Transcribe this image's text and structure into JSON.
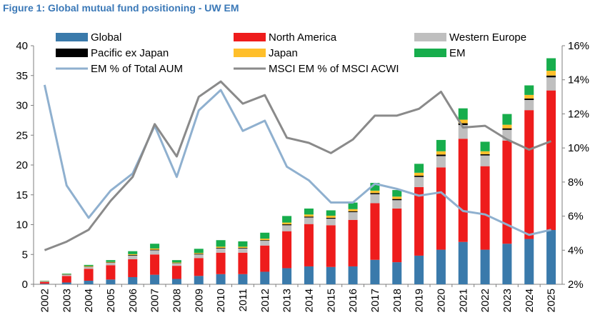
{
  "chart_data": {
    "type": "bar",
    "title": "Figure 1: Global mutual fund positioning - UW EM",
    "categories": [
      "2002",
      "2003",
      "2004",
      "2005",
      "2006",
      "2007",
      "2008",
      "2009",
      "2010",
      "2011",
      "2012",
      "2013",
      "2014",
      "2015",
      "2016",
      "2017",
      "2018",
      "2019",
      "2020",
      "2021",
      "2022",
      "2023",
      "2024",
      "2025"
    ],
    "stacked": true,
    "series": [
      {
        "name": "Global",
        "color": "#3a7aab",
        "axis": "left",
        "values": [
          0.1,
          0.3,
          0.6,
          0.8,
          1.2,
          1.6,
          0.9,
          1.4,
          1.7,
          1.7,
          2.1,
          2.7,
          3.0,
          2.9,
          3.0,
          4.1,
          3.7,
          4.8,
          5.8,
          7.1,
          5.8,
          6.8,
          7.6,
          9.1
        ]
      },
      {
        "name": "North America",
        "color": "#ee1c1c",
        "axis": "left",
        "values": [
          0.3,
          1.1,
          2.0,
          2.4,
          3.0,
          3.4,
          2.2,
          3.0,
          3.6,
          3.6,
          4.4,
          6.2,
          7.1,
          7.0,
          7.8,
          9.5,
          9.0,
          11.5,
          13.8,
          17.3,
          14.0,
          17.3,
          21.6,
          23.4
        ]
      },
      {
        "name": "Western Europe",
        "color": "#bfbfbf",
        "axis": "left",
        "values": [
          0.1,
          0.2,
          0.3,
          0.4,
          0.6,
          0.7,
          0.4,
          0.6,
          0.7,
          0.7,
          0.8,
          1.0,
          1.1,
          1.1,
          1.3,
          1.5,
          1.4,
          1.7,
          1.9,
          2.3,
          1.8,
          1.8,
          1.7,
          2.2
        ]
      },
      {
        "name": "Pacific ex Japan",
        "color": "#000000",
        "axis": "left",
        "values": [
          0.02,
          0.05,
          0.05,
          0.05,
          0.1,
          0.1,
          0.05,
          0.1,
          0.1,
          0.1,
          0.1,
          0.15,
          0.15,
          0.15,
          0.15,
          0.2,
          0.2,
          0.2,
          0.25,
          0.3,
          0.2,
          0.25,
          0.25,
          0.3
        ]
      },
      {
        "name": "Japan",
        "color": "#ffbf2a",
        "axis": "left",
        "values": [
          0.03,
          0.05,
          0.1,
          0.1,
          0.15,
          0.2,
          0.1,
          0.15,
          0.2,
          0.2,
          0.25,
          0.3,
          0.35,
          0.35,
          0.35,
          0.4,
          0.4,
          0.5,
          0.55,
          0.6,
          0.5,
          0.6,
          0.6,
          0.8
        ]
      },
      {
        "name": "EM",
        "color": "#17ad4c",
        "axis": "left",
        "values": [
          0.05,
          0.1,
          0.2,
          0.3,
          0.5,
          0.8,
          0.4,
          0.7,
          1.1,
          0.9,
          1.0,
          1.1,
          1.0,
          0.9,
          1.1,
          1.3,
          1.1,
          1.5,
          1.9,
          1.9,
          1.6,
          1.8,
          1.6,
          2.1
        ]
      },
      {
        "name": "EM % of Total AUM",
        "color": "#8fb0cf",
        "axis": "right",
        "type": "line",
        "values": [
          13.7,
          7.8,
          5.9,
          7.5,
          8.5,
          11.3,
          8.3,
          12.2,
          13.4,
          11.0,
          11.6,
          8.9,
          8.1,
          6.8,
          6.8,
          7.9,
          7.6,
          7.2,
          7.4,
          6.3,
          6.1,
          5.5,
          4.9,
          5.2
        ]
      },
      {
        "name": "MSCI EM % of MSCI ACWI",
        "color": "#8a8a8a",
        "axis": "right",
        "type": "line",
        "values": [
          4.0,
          4.5,
          5.2,
          6.9,
          8.3,
          11.4,
          9.5,
          13.0,
          13.9,
          12.6,
          13.1,
          10.6,
          10.3,
          9.7,
          10.5,
          11.9,
          11.9,
          12.3,
          13.3,
          11.2,
          11.3,
          10.5,
          9.9,
          10.4
        ]
      }
    ],
    "y_left": {
      "min": 0,
      "max": 40,
      "ticks": [
        "0",
        "5",
        "10",
        "15",
        "20",
        "25",
        "30",
        "35",
        "40"
      ]
    },
    "y_right": {
      "min": 2,
      "max": 16,
      "ticks": [
        "2%",
        "4%",
        "6%",
        "8%",
        "10%",
        "12%",
        "14%",
        "16%"
      ]
    },
    "legend_position": "top-left"
  }
}
